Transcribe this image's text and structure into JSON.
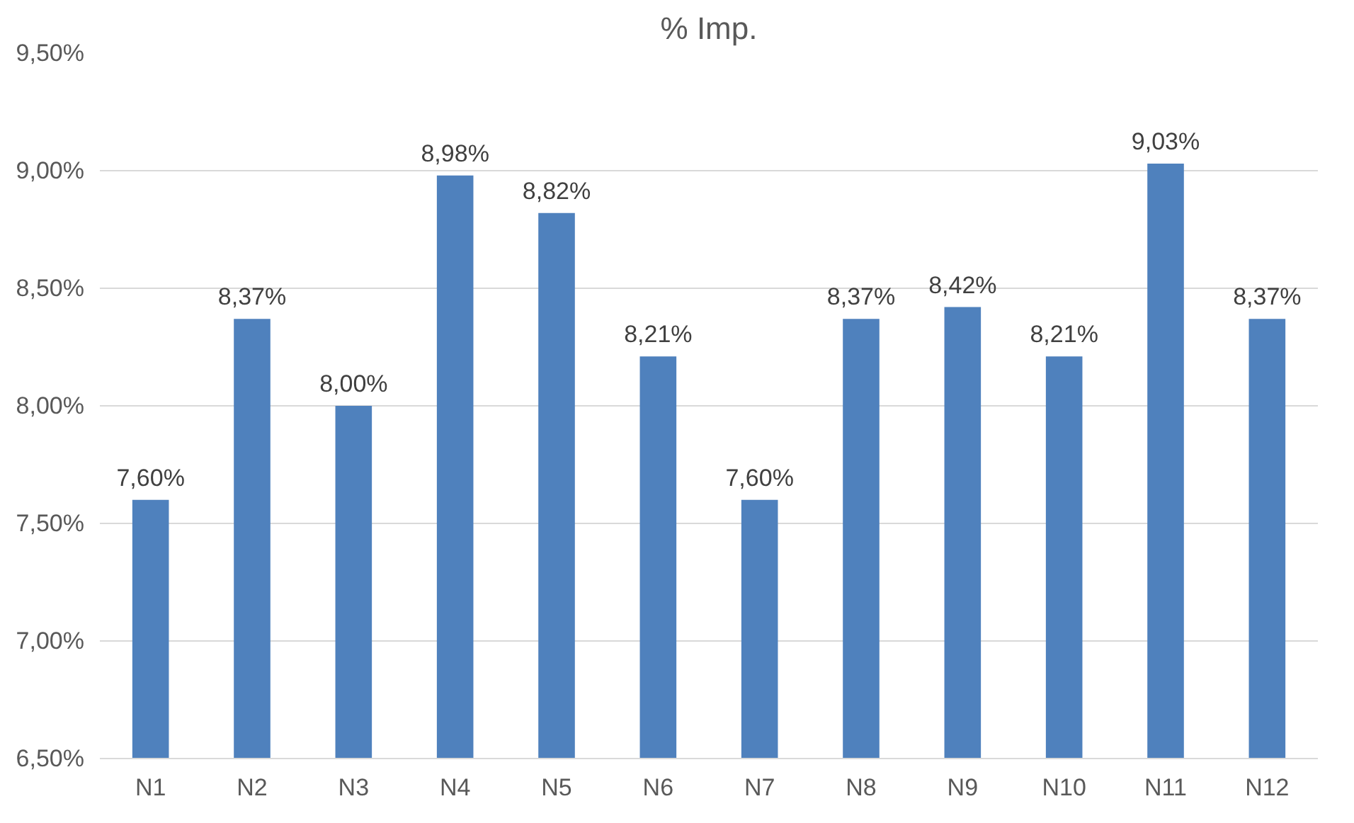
{
  "chart_data": {
    "type": "bar",
    "title": "% Imp.",
    "categories": [
      "N1",
      "N2",
      "N3",
      "N4",
      "N5",
      "N6",
      "N7",
      "N8",
      "N9",
      "N10",
      "N11",
      "N12"
    ],
    "values": [
      7.6,
      8.37,
      8.0,
      8.98,
      8.82,
      8.21,
      7.6,
      8.37,
      8.42,
      8.21,
      9.03,
      8.37
    ],
    "value_labels": [
      "7,60%",
      "8,37%",
      "8,00%",
      "8,98%",
      "8,82%",
      "8,21%",
      "7,60%",
      "8,37%",
      "8,42%",
      "8,21%",
      "9,03%",
      "8,37%"
    ],
    "color": "#4f81bd",
    "ylim": [
      6.5,
      9.5
    ],
    "yticks": [
      {
        "value": 6.5,
        "label": "6,50%"
      },
      {
        "value": 7.0,
        "label": "7,00%"
      },
      {
        "value": 7.5,
        "label": "7,50%"
      },
      {
        "value": 8.0,
        "label": "8,00%"
      },
      {
        "value": 8.5,
        "label": "8,50%"
      },
      {
        "value": 9.0,
        "label": "9,00%"
      },
      {
        "value": 9.5,
        "label": "9,50%"
      }
    ],
    "grid": "y"
  }
}
